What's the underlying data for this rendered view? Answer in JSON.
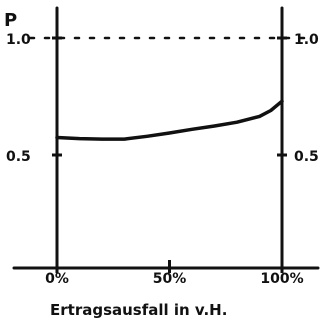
{
  "chart_data": {
    "type": "line",
    "title": "",
    "xlabel": "Ertragsausfall in v.H.",
    "ylabel": "P",
    "xlim": [
      0,
      100
    ],
    "ylim": [
      0,
      1.15
    ],
    "x_ticks": [
      {
        "value": 0,
        "label": "0%"
      },
      {
        "value": 50,
        "label": "50%"
      },
      {
        "value": 100,
        "label": "100%"
      }
    ],
    "y_ticks": [
      {
        "value": 0.5,
        "label": "0.5"
      },
      {
        "value": 1.0,
        "label": "1.0"
      }
    ],
    "reference_lines": [
      {
        "y": 1.0,
        "style": "dotted"
      }
    ],
    "series": [
      {
        "x": [
          0,
          10,
          20,
          30,
          40,
          50,
          60,
          70,
          80,
          90,
          95,
          100
        ],
        "y": [
          0.575,
          0.57,
          0.568,
          0.568,
          0.58,
          0.594,
          0.61,
          0.624,
          0.64,
          0.665,
          0.69,
          0.73
        ]
      }
    ],
    "grid": false,
    "legend": "none",
    "right_axis": true
  },
  "colors": {
    "ink": "#111111",
    "background": "#ffffff"
  }
}
